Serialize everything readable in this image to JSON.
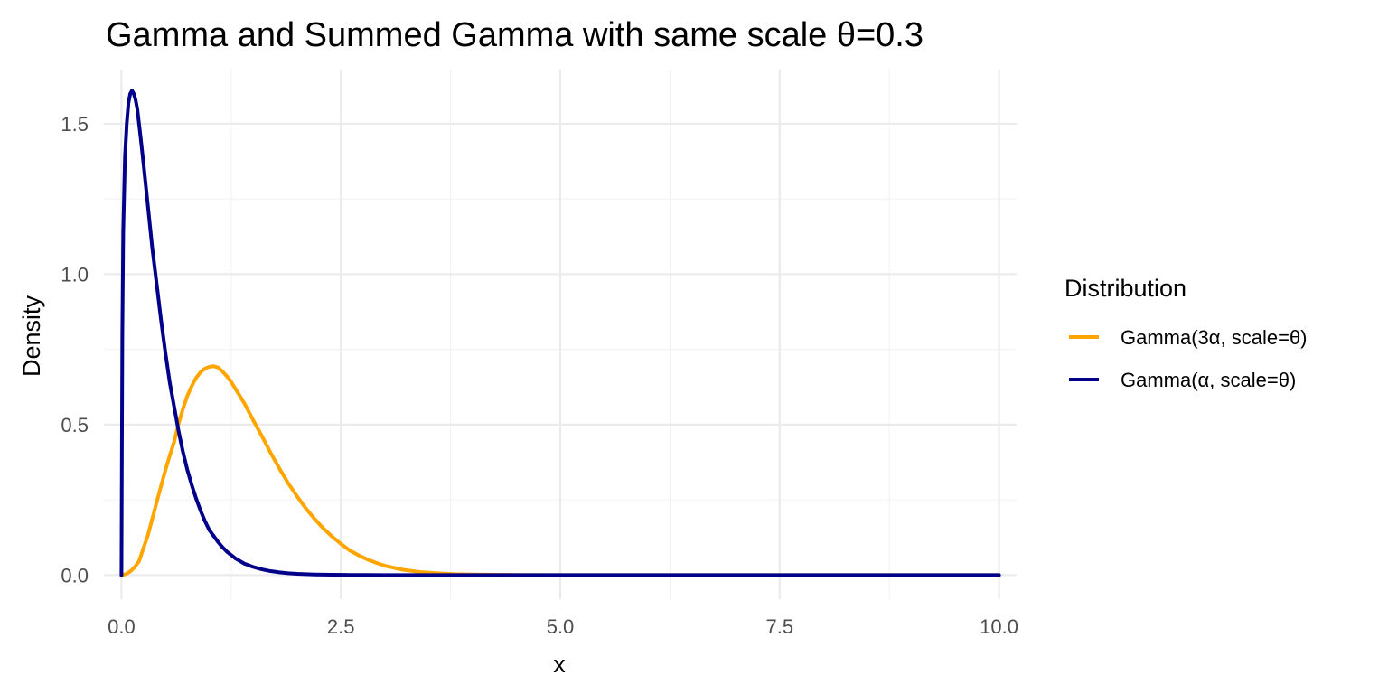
{
  "chart_data": {
    "type": "line",
    "title": "Gamma and Summed Gamma with same scale θ=0.3",
    "xlabel": "x",
    "ylabel": "Density",
    "xlim": [
      -0.2,
      10.2
    ],
    "ylim": [
      -0.08,
      1.68
    ],
    "x_ticks": [
      0.0,
      2.5,
      5.0,
      7.5,
      10.0
    ],
    "x_tick_labels": [
      "0.0",
      "2.5",
      "5.0",
      "7.5",
      "10.0"
    ],
    "y_ticks": [
      0.0,
      0.5,
      1.0,
      1.5
    ],
    "y_tick_labels": [
      "0.0",
      "0.5",
      "1.0",
      "1.5"
    ],
    "x_minor_ticks": [
      1.25,
      3.75,
      6.25,
      8.75
    ],
    "y_minor_ticks": [
      0.25,
      0.75,
      1.25
    ],
    "grid": true,
    "legend": {
      "title": "Distribution",
      "position": "right"
    },
    "series": [
      {
        "name": "Gamma(3α, scale=θ)",
        "color": "#FFA500",
        "x": [
          0.0,
          0.05,
          0.1,
          0.15,
          0.2,
          0.25,
          0.3,
          0.35,
          0.4,
          0.45,
          0.5,
          0.55,
          0.6,
          0.65,
          0.7,
          0.75,
          0.8,
          0.85,
          0.9,
          0.95,
          1.0,
          1.05,
          1.1,
          1.15,
          1.2,
          1.25,
          1.3,
          1.35,
          1.4,
          1.45,
          1.5,
          1.6,
          1.7,
          1.8,
          1.9,
          2.0,
          2.1,
          2.2,
          2.3,
          2.4,
          2.5,
          2.6,
          2.7,
          2.8,
          2.9,
          3.0,
          3.2,
          3.4,
          3.6,
          3.8,
          4.0,
          4.5,
          5.0,
          6.0,
          7.0,
          8.0,
          9.0,
          10.0
        ],
        "values": [
          0.0,
          0.003,
          0.012,
          0.026,
          0.046,
          0.089,
          0.131,
          0.186,
          0.241,
          0.295,
          0.348,
          0.397,
          0.442,
          0.502,
          0.552,
          0.595,
          0.628,
          0.655,
          0.674,
          0.686,
          0.692,
          0.694,
          0.69,
          0.677,
          0.661,
          0.642,
          0.618,
          0.595,
          0.571,
          0.543,
          0.515,
          0.462,
          0.406,
          0.354,
          0.305,
          0.262,
          0.222,
          0.187,
          0.155,
          0.128,
          0.104,
          0.082,
          0.066,
          0.052,
          0.041,
          0.031,
          0.018,
          0.01,
          0.006,
          0.003,
          0.002,
          0.0005,
          0.0001,
          0.0,
          0.0,
          0.0,
          0.0,
          0.0
        ]
      },
      {
        "name": "Gamma(α, scale=θ)",
        "color": "#00008B",
        "x": [
          0.0,
          0.005,
          0.01,
          0.02,
          0.04,
          0.06,
          0.08,
          0.1,
          0.12,
          0.14,
          0.16,
          0.18,
          0.2,
          0.22,
          0.25,
          0.3,
          0.35,
          0.4,
          0.45,
          0.5,
          0.55,
          0.6,
          0.65,
          0.7,
          0.75,
          0.8,
          0.85,
          0.9,
          0.95,
          1.0,
          1.05,
          1.1,
          1.15,
          1.2,
          1.3,
          1.4,
          1.5,
          1.6,
          1.7,
          1.8,
          1.9,
          2.0,
          2.2,
          2.4,
          2.6,
          2.8,
          3.0,
          3.5,
          4.0,
          5.0,
          6.0,
          7.0,
          8.0,
          9.0,
          10.0
        ],
        "values": [
          0.0,
          0.43,
          0.8,
          1.14,
          1.39,
          1.5,
          1.57,
          1.6,
          1.61,
          1.6,
          1.58,
          1.55,
          1.5,
          1.45,
          1.37,
          1.23,
          1.09,
          0.97,
          0.85,
          0.74,
          0.64,
          0.56,
          0.48,
          0.41,
          0.35,
          0.3,
          0.255,
          0.215,
          0.18,
          0.15,
          0.13,
          0.11,
          0.093,
          0.078,
          0.055,
          0.038,
          0.027,
          0.019,
          0.013,
          0.009,
          0.006,
          0.004,
          0.002,
          0.001,
          0.0005,
          0.0002,
          0.0001,
          0.0,
          0.0,
          0.0,
          0.0,
          0.0,
          0.0,
          0.0,
          0.0
        ]
      }
    ]
  }
}
